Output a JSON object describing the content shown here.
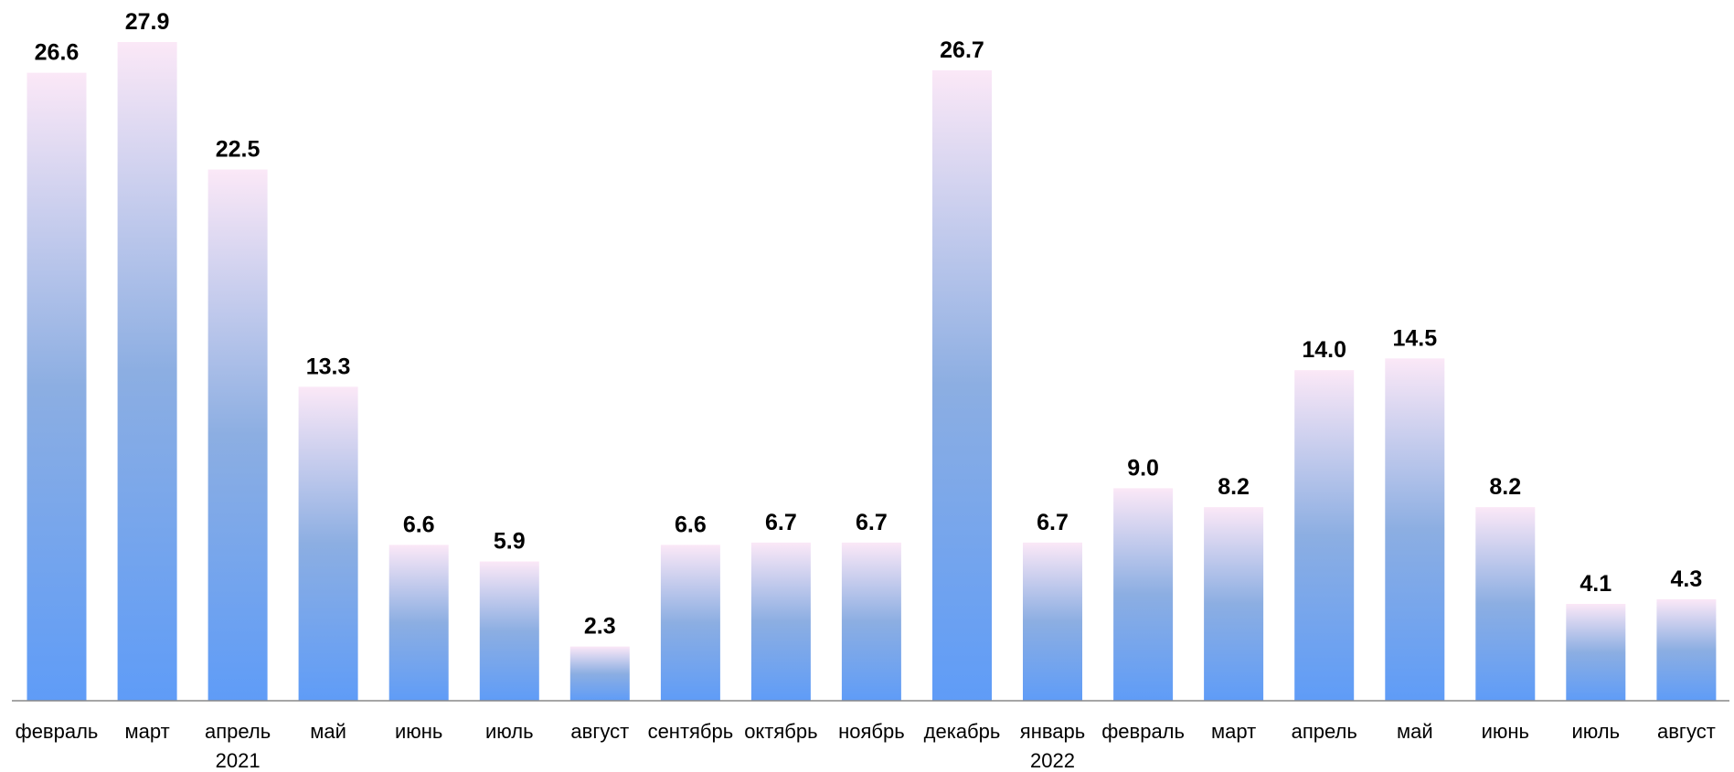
{
  "chart_data": {
    "type": "bar",
    "title": "",
    "xlabel": "",
    "ylabel": "",
    "ylim": [
      0,
      27.9
    ],
    "grid": false,
    "legend": "none",
    "categories": [
      "февраль",
      "март",
      "апрель",
      "май",
      "июнь",
      "июль",
      "август",
      "сентябрь",
      "октябрь",
      "ноябрь",
      "декабрь",
      "январь",
      "февраль",
      "март",
      "апрель",
      "май",
      "июнь",
      "июль",
      "август"
    ],
    "values": [
      26.6,
      27.9,
      22.5,
      13.3,
      6.6,
      5.9,
      2.3,
      6.6,
      6.7,
      6.7,
      26.7,
      6.7,
      9.0,
      8.2,
      14.0,
      14.5,
      8.2,
      4.1,
      4.3
    ],
    "data_labels": [
      "26.6",
      "27.9",
      "22.5",
      "13.3",
      "6.6",
      "5.9",
      "2.3",
      "6.6",
      "6.7",
      "6.7",
      "26.7",
      "6.7",
      "9.0",
      "8.2",
      "14.0",
      "14.5",
      "8.2",
      "4.1",
      "4.3"
    ],
    "year_groups": [
      {
        "label": "2021",
        "under_category_index": 2
      },
      {
        "label": "2022",
        "under_category_index": 11
      }
    ],
    "colors": {
      "bar_bottom": "#5f9cf7",
      "bar_mid": "#8caee2",
      "bar_top": "#fbe8f7",
      "axis": "#888888",
      "text": "#000000"
    }
  }
}
